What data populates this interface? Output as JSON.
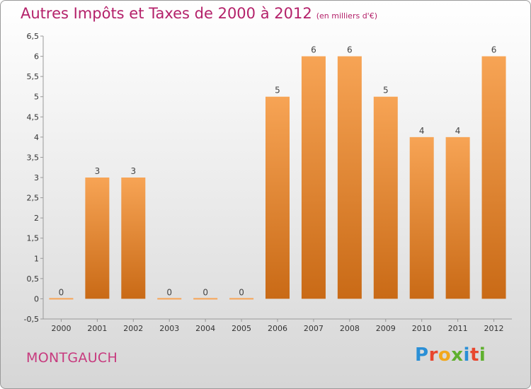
{
  "header": {
    "title": "Autres Impôts et Taxes de 2000 à 2012",
    "unit": "(en milliers d'€)"
  },
  "footer": {
    "city": "MONTGAUCH",
    "logo_letters": [
      "P",
      "r",
      "o",
      "x",
      "i",
      "t",
      "i"
    ]
  },
  "colors": {
    "bar_top": "#f7a455",
    "bar_bottom": "#c96a16",
    "title": "#b4216a",
    "city": "#c73a7e"
  },
  "chart_data": {
    "type": "bar",
    "title": "Autres Impôts et Taxes de 2000 à 2012",
    "xlabel": "",
    "ylabel": "",
    "categories": [
      "2000",
      "2001",
      "2002",
      "2003",
      "2004",
      "2005",
      "2006",
      "2007",
      "2008",
      "2009",
      "2010",
      "2011",
      "2012"
    ],
    "values": [
      0,
      3,
      3,
      0,
      0,
      0,
      5,
      6,
      6,
      5,
      4,
      4,
      6
    ],
    "data_labels": [
      "0",
      "3",
      "3",
      "0",
      "0",
      "0",
      "5",
      "6",
      "6",
      "5",
      "4",
      "4",
      "6"
    ],
    "ylim": [
      -0.5,
      6.5
    ],
    "yticks": [
      -0.5,
      0,
      0.5,
      1,
      1.5,
      2,
      2.5,
      3,
      3.5,
      4,
      4.5,
      5,
      5.5,
      6,
      6.5
    ],
    "ytick_labels": [
      "-0,5",
      "0",
      "0,5",
      "1",
      "1,5",
      "2",
      "2,5",
      "3",
      "3,5",
      "4",
      "4,5",
      "5",
      "5,5",
      "6",
      "6,5"
    ],
    "grid": false,
    "legend": "none"
  }
}
